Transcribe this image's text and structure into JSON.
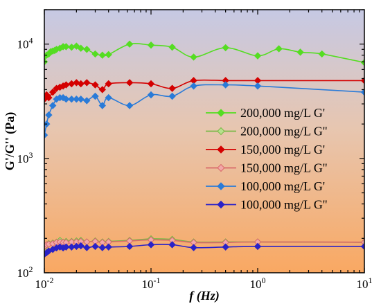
{
  "chart_data": {
    "type": "line",
    "xlabel_f": "f",
    "xlabel_unit": " (Hz)",
    "ylabel": "G'/G'' (Pa)",
    "x_scale": "log",
    "y_scale": "log",
    "xlim": [
      0.01,
      10
    ],
    "ylim": [
      100,
      20000
    ],
    "x_ticks": [
      {
        "value": 0.01,
        "base": "10",
        "exp": "-2"
      },
      {
        "value": 0.1,
        "base": "10",
        "exp": "-1"
      },
      {
        "value": 1,
        "base": "10",
        "exp": "0"
      },
      {
        "value": 10,
        "base": "10",
        "exp": "1"
      }
    ],
    "y_ticks": [
      {
        "value": 100,
        "base": "10",
        "exp": "2"
      },
      {
        "value": 1000,
        "base": "10",
        "exp": "3"
      },
      {
        "value": 10000,
        "base": "10",
        "exp": "4"
      }
    ],
    "legend_position": "right",
    "background_gradient": {
      "top": "#c6c9e4",
      "bottom": "#f9a862"
    },
    "series": [
      {
        "name": "200,000 mg/L G'",
        "color": "#55dd22",
        "marker_fill": "#55dd22",
        "x": [
          0.01,
          0.0105,
          0.011,
          0.0115,
          0.012,
          0.0125,
          0.013,
          0.014,
          0.015,
          0.016,
          0.018,
          0.02,
          0.022,
          0.025,
          0.03,
          0.035,
          0.04,
          0.063,
          0.1,
          0.158,
          0.251,
          0.5,
          1.0,
          1.58,
          2.51,
          4.0,
          10.0
        ],
        "y": [
          7000,
          8000,
          8200,
          8600,
          8700,
          8800,
          9000,
          9200,
          9500,
          9500,
          9400,
          9600,
          9200,
          9000,
          8200,
          8000,
          8100,
          10000,
          9800,
          9400,
          7700,
          9300,
          7900,
          9100,
          8500,
          8200,
          6900
        ]
      },
      {
        "name": "200,000 mg/L G''",
        "color": "#7ab846",
        "marker_fill": "#b7e08e",
        "x": [
          0.01,
          0.0105,
          0.011,
          0.012,
          0.013,
          0.014,
          0.015,
          0.016,
          0.018,
          0.02,
          0.022,
          0.025,
          0.03,
          0.035,
          0.04,
          0.063,
          0.1,
          0.158,
          0.251,
          0.5,
          1.0,
          10.0
        ],
        "y": [
          168,
          175,
          180,
          182,
          185,
          192,
          185,
          188,
          188,
          190,
          192,
          186,
          190,
          186,
          188,
          192,
          198,
          196,
          186,
          186,
          186,
          185
        ]
      },
      {
        "name": "150,000 mg/L G'",
        "color": "#d40000",
        "marker_fill": "#d40000",
        "x": [
          0.01,
          0.0105,
          0.011,
          0.012,
          0.013,
          0.014,
          0.015,
          0.016,
          0.018,
          0.02,
          0.022,
          0.025,
          0.03,
          0.035,
          0.04,
          0.063,
          0.1,
          0.158,
          0.251,
          0.5,
          1.0,
          10.0
        ],
        "y": [
          3300,
          3600,
          3400,
          3800,
          4100,
          4200,
          4300,
          4400,
          4500,
          4600,
          4500,
          4600,
          4400,
          4000,
          4500,
          4600,
          4500,
          4100,
          4800,
          4800,
          4800,
          4800
        ]
      },
      {
        "name": "150,000 mg/L G''",
        "color": "#d86a6a",
        "marker_fill": "#f2a8a8",
        "x": [
          0.01,
          0.0105,
          0.011,
          0.012,
          0.013,
          0.014,
          0.015,
          0.016,
          0.018,
          0.02,
          0.022,
          0.025,
          0.03,
          0.035,
          0.04,
          0.063,
          0.1,
          0.158,
          0.251,
          0.5,
          1.0,
          10.0
        ],
        "y": [
          170,
          176,
          178,
          180,
          184,
          186,
          184,
          184,
          186,
          186,
          188,
          186,
          188,
          184,
          186,
          190,
          194,
          192,
          184,
          184,
          186,
          185
        ]
      },
      {
        "name": "100,000 mg/L G'",
        "color": "#2a7bd8",
        "marker_fill": "#2a7bd8",
        "x": [
          0.01,
          0.0105,
          0.011,
          0.012,
          0.013,
          0.014,
          0.015,
          0.016,
          0.018,
          0.02,
          0.022,
          0.025,
          0.03,
          0.035,
          0.04,
          0.063,
          0.1,
          0.158,
          0.251,
          0.5,
          1.0,
          10.0
        ],
        "y": [
          1600,
          2000,
          2400,
          2900,
          3300,
          3400,
          3400,
          3300,
          3300,
          3300,
          3300,
          3200,
          3500,
          2900,
          3400,
          2900,
          3600,
          3500,
          4300,
          4400,
          4300,
          3800
        ]
      },
      {
        "name": "100,000 mg/L G''",
        "color": "#2a22c8",
        "marker_fill": "#2a22c8",
        "x": [
          0.01,
          0.0105,
          0.011,
          0.012,
          0.013,
          0.014,
          0.015,
          0.016,
          0.018,
          0.02,
          0.022,
          0.025,
          0.03,
          0.035,
          0.04,
          0.063,
          0.1,
          0.158,
          0.251,
          0.5,
          1.0,
          10.0
        ],
        "y": [
          145,
          150,
          155,
          160,
          165,
          168,
          165,
          168,
          168,
          170,
          172,
          166,
          170,
          166,
          168,
          170,
          176,
          176,
          166,
          168,
          170,
          170
        ]
      }
    ]
  }
}
